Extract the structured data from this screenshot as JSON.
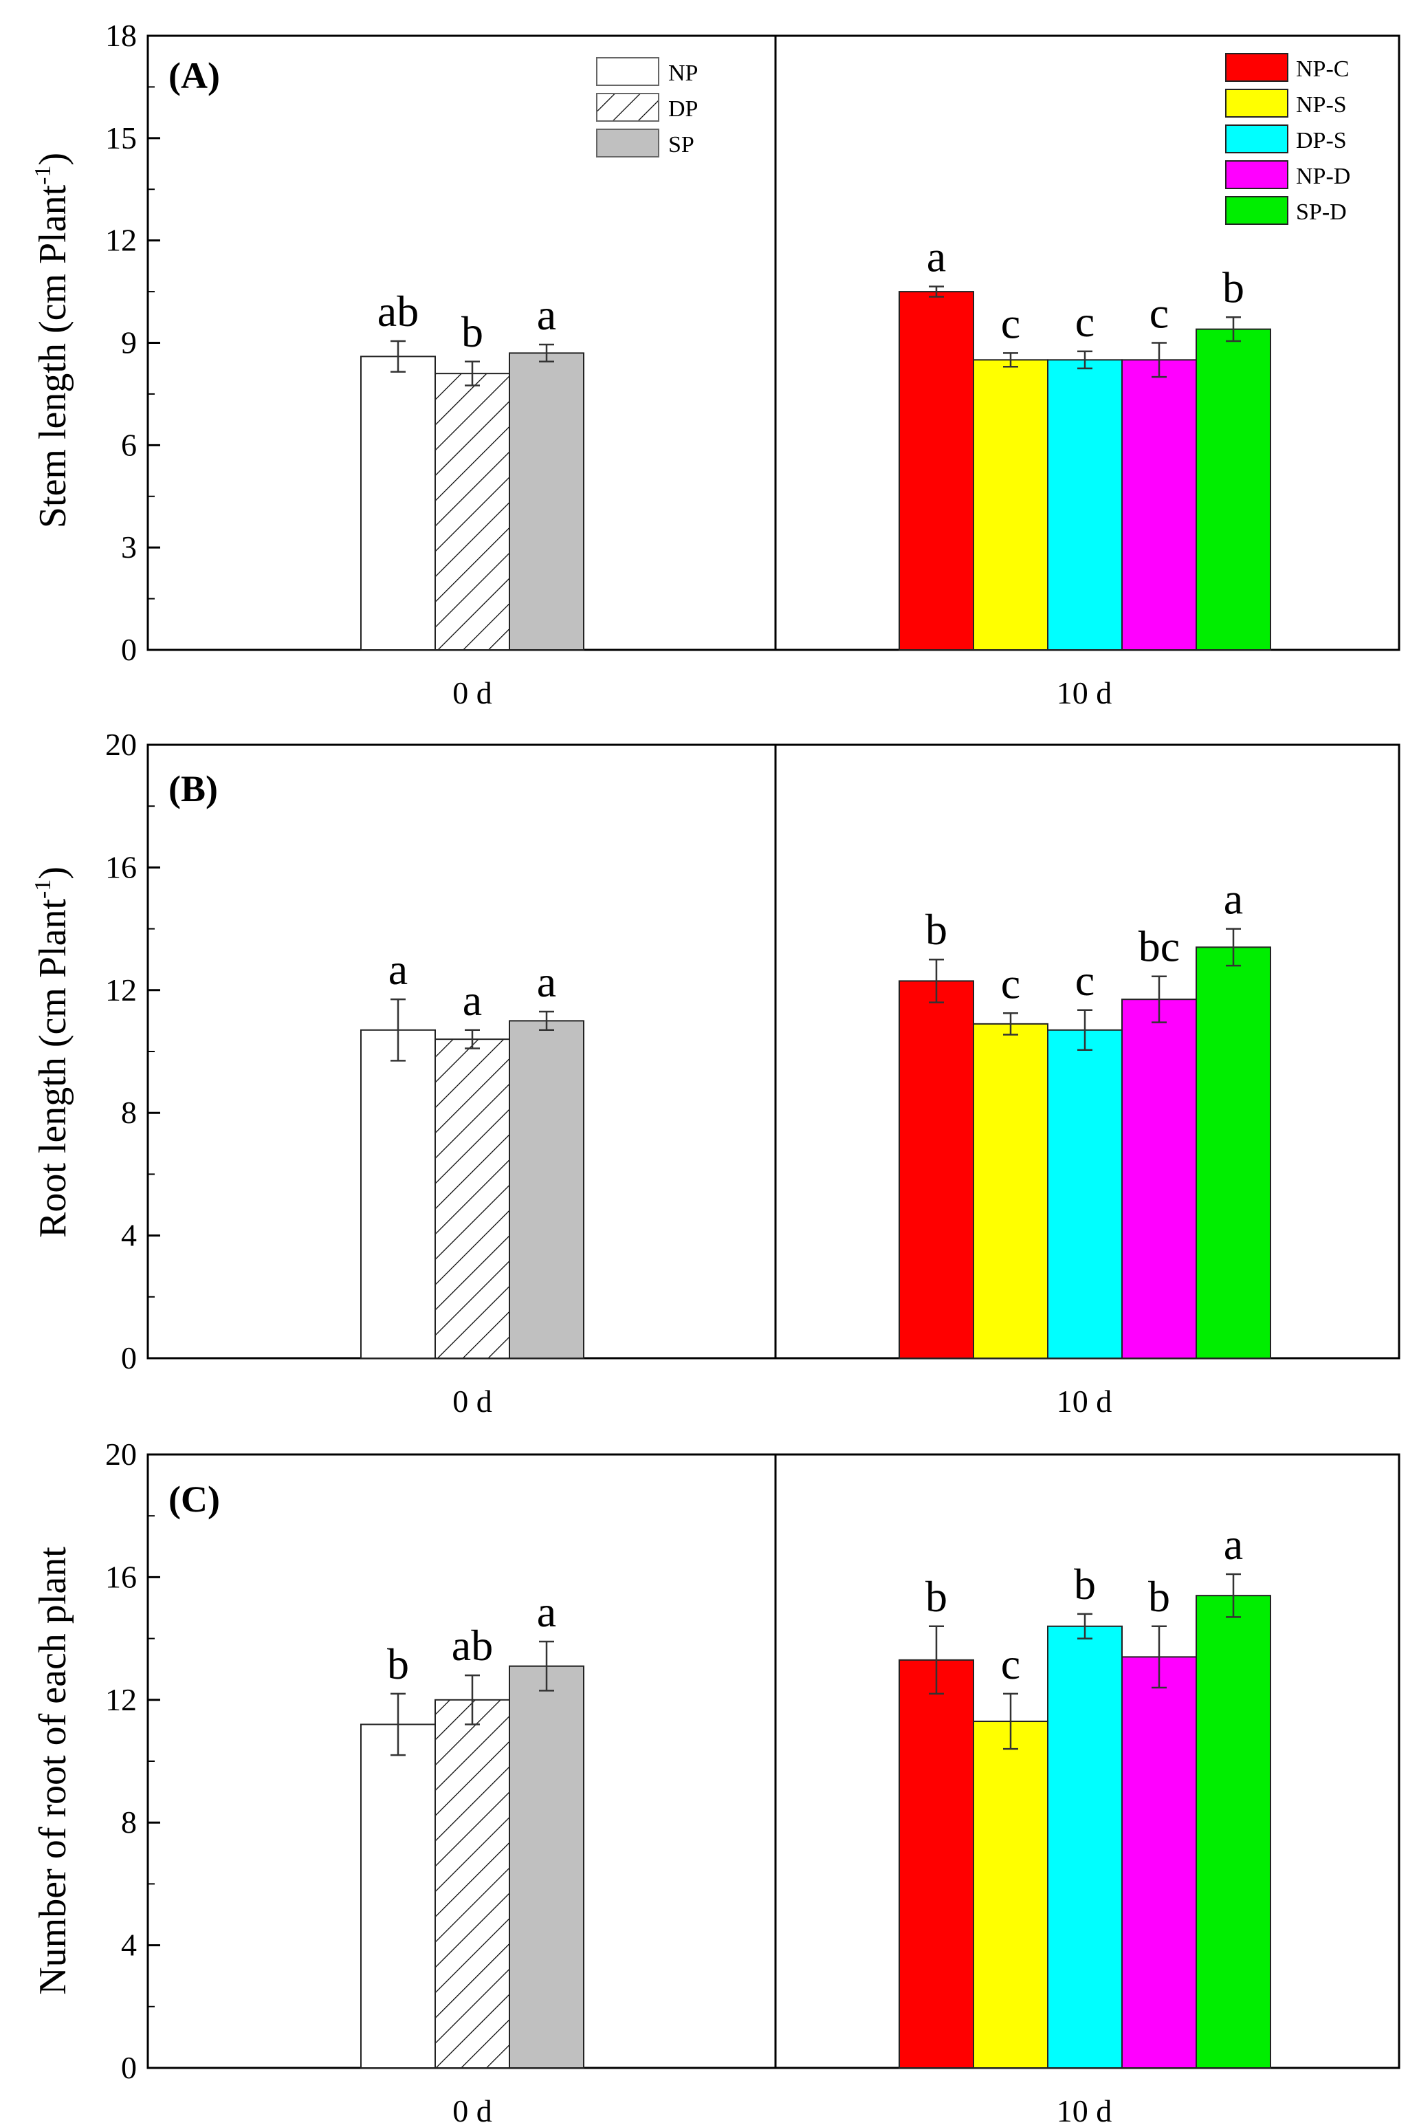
{
  "colors": {
    "NP": "#ffffff",
    "DP": "#ffffff",
    "SP": "#c0c0c0",
    "NP-C": "#ff0000",
    "NP-S": "#ffff00",
    "DP-S": "#00ffff",
    "NP-D": "#ff00ff",
    "SP-D": "#00ee00",
    "axis": "#000000"
  },
  "legend_left": [
    "NP",
    "DP",
    "SP"
  ],
  "legend_right": [
    "NP-C",
    "NP-S",
    "DP-S",
    "NP-D",
    "SP-D"
  ],
  "chart_data": [
    {
      "type": "bar",
      "panel": "(A)",
      "ylabel": "Stem length (cm Plant-1)",
      "ylabel_main": "Stem length (cm Plant",
      "ylabel_sup": "-1",
      "ylabel_end": ")",
      "ylim": [
        0,
        18
      ],
      "yticks": [
        "0",
        "3",
        "6",
        "9",
        "12",
        "15",
        "18"
      ],
      "categories": [
        "0 d",
        "10 d"
      ],
      "groups": [
        {
          "x": "0 d",
          "bars": [
            {
              "name": "NP",
              "value": 8.6,
              "err": 0.45,
              "sig": "ab"
            },
            {
              "name": "DP",
              "value": 8.1,
              "err": 0.35,
              "sig": "b"
            },
            {
              "name": "SP",
              "value": 8.7,
              "err": 0.25,
              "sig": "a"
            }
          ]
        },
        {
          "x": "10 d",
          "bars": [
            {
              "name": "NP-C",
              "value": 10.5,
              "err": 0.15,
              "sig": "a"
            },
            {
              "name": "NP-S",
              "value": 8.5,
              "err": 0.2,
              "sig": "c"
            },
            {
              "name": "DP-S",
              "value": 8.5,
              "err": 0.25,
              "sig": "c"
            },
            {
              "name": "NP-D",
              "value": 8.5,
              "err": 0.5,
              "sig": "c"
            },
            {
              "name": "SP-D",
              "value": 9.4,
              "err": 0.35,
              "sig": "b"
            }
          ]
        }
      ]
    },
    {
      "type": "bar",
      "panel": "(B)",
      "ylabel": "Root length (cm Plant-1)",
      "ylabel_main": "Root length (cm Plant",
      "ylabel_sup": "-1",
      "ylabel_end": ")",
      "ylim": [
        0,
        20
      ],
      "yticks": [
        "0",
        "4",
        "8",
        "12",
        "16",
        "20"
      ],
      "categories": [
        "0 d",
        "10 d"
      ],
      "groups": [
        {
          "x": "0 d",
          "bars": [
            {
              "name": "NP",
              "value": 10.7,
              "err": 1.0,
              "sig": "a"
            },
            {
              "name": "DP",
              "value": 10.4,
              "err": 0.3,
              "sig": "a"
            },
            {
              "name": "SP",
              "value": 11.0,
              "err": 0.3,
              "sig": "a"
            }
          ]
        },
        {
          "x": "10 d",
          "bars": [
            {
              "name": "NP-C",
              "value": 12.3,
              "err": 0.7,
              "sig": "b"
            },
            {
              "name": "NP-S",
              "value": 10.9,
              "err": 0.35,
              "sig": "c"
            },
            {
              "name": "DP-S",
              "value": 10.7,
              "err": 0.65,
              "sig": "c"
            },
            {
              "name": "NP-D",
              "value": 11.7,
              "err": 0.75,
              "sig": "bc"
            },
            {
              "name": "SP-D",
              "value": 13.4,
              "err": 0.6,
              "sig": "a"
            }
          ]
        }
      ]
    },
    {
      "type": "bar",
      "panel": "(C)",
      "ylabel": "Number of root of each plant",
      "ylabel_main": "Number of root of each plant",
      "ylabel_sup": "",
      "ylabel_end": "",
      "ylim": [
        0,
        20
      ],
      "yticks": [
        "0",
        "4",
        "8",
        "12",
        "16",
        "20"
      ],
      "categories": [
        "0 d",
        "10 d"
      ],
      "groups": [
        {
          "x": "0 d",
          "bars": [
            {
              "name": "NP",
              "value": 11.2,
              "err": 1.0,
              "sig": "b"
            },
            {
              "name": "DP",
              "value": 12.0,
              "err": 0.8,
              "sig": "ab"
            },
            {
              "name": "SP",
              "value": 13.1,
              "err": 0.8,
              "sig": "a"
            }
          ]
        },
        {
          "x": "10 d",
          "bars": [
            {
              "name": "NP-C",
              "value": 13.3,
              "err": 1.1,
              "sig": "b"
            },
            {
              "name": "NP-S",
              "value": 11.3,
              "err": 0.9,
              "sig": "c"
            },
            {
              "name": "DP-S",
              "value": 14.4,
              "err": 0.4,
              "sig": "b"
            },
            {
              "name": "NP-D",
              "value": 13.4,
              "err": 1.0,
              "sig": "b"
            },
            {
              "name": "SP-D",
              "value": 15.4,
              "err": 0.7,
              "sig": "a"
            }
          ]
        }
      ]
    }
  ]
}
